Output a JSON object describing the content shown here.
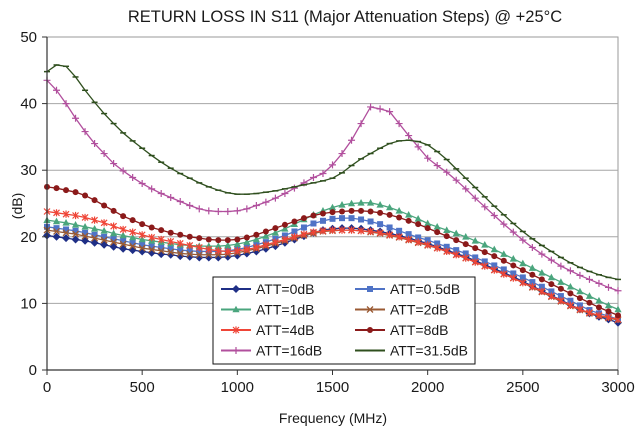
{
  "chart_data": {
    "type": "line",
    "title": "RETURN LOSS IN S11 (Major Attenuation Steps) @ +25°C",
    "xlabel": "Frequency (MHz)",
    "ylabel": "(dB)",
    "xlim": [
      0,
      3000
    ],
    "ylim": [
      0,
      50
    ],
    "xticks": [
      0,
      500,
      1000,
      1500,
      2000,
      2500,
      3000
    ],
    "yticks": [
      0,
      10,
      20,
      30,
      40,
      50
    ],
    "grid": "horizontal",
    "legend": "bottom-center, inside, two columns",
    "x": [
      0,
      50,
      100,
      150,
      200,
      250,
      300,
      350,
      400,
      450,
      500,
      550,
      600,
      650,
      700,
      750,
      800,
      850,
      900,
      950,
      1000,
      1050,
      1100,
      1150,
      1200,
      1250,
      1300,
      1350,
      1400,
      1450,
      1500,
      1550,
      1600,
      1650,
      1700,
      1750,
      1800,
      1850,
      1900,
      1950,
      2000,
      2050,
      2100,
      2150,
      2200,
      2250,
      2300,
      2350,
      2400,
      2450,
      2500,
      2550,
      2600,
      2650,
      2700,
      2750,
      2800,
      2850,
      2900,
      2950,
      3000
    ],
    "series": [
      {
        "name": "ATT=0dB",
        "color": "#1f2f86",
        "marker": "diamond",
        "values": [
          20.2,
          20.0,
          19.8,
          19.6,
          19.4,
          19.1,
          18.8,
          18.5,
          18.2,
          18.0,
          17.8,
          17.6,
          17.4,
          17.3,
          17.1,
          17.0,
          16.9,
          16.9,
          16.9,
          17.0,
          17.2,
          17.5,
          17.8,
          18.2,
          18.6,
          19.1,
          19.6,
          20.1,
          20.6,
          21.0,
          21.2,
          21.3,
          21.3,
          21.2,
          21.0,
          20.8,
          20.5,
          20.2,
          19.8,
          19.4,
          19.0,
          18.5,
          18.0,
          17.5,
          17.0,
          16.4,
          15.8,
          15.2,
          14.6,
          14.0,
          13.3,
          12.6,
          11.9,
          11.2,
          10.5,
          9.8,
          9.1,
          8.5,
          8.0,
          7.6,
          7.1
        ]
      },
      {
        "name": "ATT=0.5dB",
        "color": "#4f73c6",
        "marker": "square",
        "values": [
          21.5,
          21.3,
          21.1,
          20.9,
          20.6,
          20.3,
          20.0,
          19.7,
          19.4,
          19.1,
          18.8,
          18.6,
          18.4,
          18.2,
          18.0,
          17.9,
          17.8,
          17.8,
          17.8,
          17.9,
          18.1,
          18.4,
          18.8,
          19.2,
          19.7,
          20.2,
          20.8,
          21.4,
          22.0,
          22.4,
          22.7,
          22.8,
          22.8,
          22.6,
          22.3,
          21.9,
          21.4,
          20.9,
          20.4,
          19.9,
          19.5,
          19.0,
          18.5,
          18.0,
          17.5,
          16.9,
          16.3,
          15.7,
          15.1,
          14.5,
          13.9,
          13.2,
          12.5,
          11.8,
          11.1,
          10.4,
          9.7,
          9.0,
          8.5,
          8.1,
          7.6
        ]
      },
      {
        "name": "ATT=1dB",
        "color": "#4aa57d",
        "marker": "triangle",
        "values": [
          22.5,
          22.3,
          22.1,
          21.8,
          21.5,
          21.2,
          20.9,
          20.5,
          20.2,
          19.9,
          19.6,
          19.4,
          19.2,
          19.0,
          18.8,
          18.7,
          18.6,
          18.6,
          18.6,
          18.7,
          18.9,
          19.2,
          19.6,
          20.1,
          20.6,
          21.2,
          21.9,
          22.6,
          23.3,
          23.9,
          24.4,
          24.8,
          25.0,
          25.1,
          25.1,
          24.8,
          24.4,
          23.9,
          23.3,
          22.7,
          22.0,
          21.5,
          21.0,
          20.5,
          20.0,
          19.4,
          18.8,
          18.1,
          17.4,
          16.7,
          16.0,
          15.3,
          14.6,
          13.9,
          13.2,
          12.5,
          11.8,
          11.1,
          10.4,
          9.7,
          9.1
        ]
      },
      {
        "name": "ATT=2dB",
        "color": "#9a5a33",
        "marker": "x",
        "values": [
          21.0,
          20.8,
          20.6,
          20.4,
          20.1,
          19.8,
          19.5,
          19.2,
          18.9,
          18.6,
          18.3,
          18.1,
          17.9,
          17.7,
          17.5,
          17.4,
          17.3,
          17.3,
          17.3,
          17.4,
          17.6,
          17.9,
          18.2,
          18.6,
          19.0,
          19.4,
          19.8,
          20.2,
          20.5,
          20.8,
          20.9,
          21.0,
          21.0,
          20.9,
          20.7,
          20.5,
          20.2,
          19.9,
          19.5,
          19.1,
          18.7,
          18.3,
          17.8,
          17.3,
          16.8,
          16.2,
          15.6,
          15.0,
          14.4,
          13.8,
          13.1,
          12.4,
          11.7,
          11.0,
          10.3,
          9.6,
          9.0,
          8.5,
          8.1,
          7.8,
          7.5
        ]
      },
      {
        "name": "ATT=4dB",
        "color": "#ef4537",
        "marker": "star",
        "values": [
          23.8,
          23.6,
          23.4,
          23.2,
          22.9,
          22.5,
          22.1,
          21.6,
          21.1,
          20.7,
          20.3,
          19.9,
          19.6,
          19.3,
          19.0,
          18.7,
          18.4,
          18.1,
          17.9,
          17.8,
          17.9,
          18.1,
          18.4,
          18.8,
          19.2,
          19.6,
          20.0,
          20.4,
          20.7,
          20.9,
          21.0,
          21.0,
          21.0,
          20.9,
          20.8,
          20.6,
          20.3,
          20.0,
          19.6,
          19.2,
          18.8,
          18.3,
          17.8,
          17.3,
          16.8,
          16.2,
          15.6,
          15.0,
          14.4,
          13.8,
          13.1,
          12.5,
          11.8,
          11.1,
          10.4,
          9.7,
          9.1,
          8.6,
          8.2,
          7.9,
          7.6
        ]
      },
      {
        "name": "ATT=8dB",
        "color": "#8b1a1a",
        "marker": "circle",
        "values": [
          27.5,
          27.3,
          27.0,
          26.7,
          26.2,
          25.5,
          24.7,
          23.9,
          23.1,
          22.5,
          21.9,
          21.4,
          21.0,
          20.6,
          20.3,
          20.0,
          19.8,
          19.6,
          19.5,
          19.5,
          19.6,
          19.9,
          20.3,
          20.8,
          21.3,
          21.8,
          22.3,
          22.8,
          23.2,
          23.5,
          23.7,
          23.8,
          23.9,
          23.9,
          23.8,
          23.6,
          23.3,
          22.9,
          22.4,
          21.9,
          21.3,
          20.7,
          20.1,
          19.5,
          18.9,
          18.3,
          17.7,
          17.1,
          16.4,
          15.7,
          15.0,
          14.3,
          13.6,
          12.9,
          12.2,
          11.5,
          10.8,
          10.1,
          9.4,
          8.8,
          8.2
        ]
      },
      {
        "name": "ATT=16dB",
        "color": "#b14f9d",
        "marker": "plus",
        "values": [
          43.5,
          42.0,
          40.0,
          37.8,
          35.8,
          34.0,
          32.5,
          31.0,
          29.9,
          28.9,
          28.0,
          27.2,
          26.5,
          25.9,
          25.3,
          24.7,
          24.2,
          23.9,
          23.8,
          23.8,
          23.9,
          24.2,
          24.7,
          25.2,
          25.8,
          26.5,
          27.3,
          28.1,
          28.9,
          29.5,
          30.8,
          32.5,
          34.5,
          37.0,
          39.5,
          39.2,
          38.8,
          37.0,
          35.2,
          33.5,
          31.8,
          30.7,
          29.7,
          28.5,
          27.2,
          25.8,
          24.5,
          23.2,
          21.9,
          20.7,
          19.5,
          18.4,
          17.4,
          16.5,
          15.6,
          14.9,
          14.2,
          13.6,
          13.0,
          12.4,
          11.9
        ]
      },
      {
        "name": "ATT=31.5dB",
        "color": "#2f4f1e",
        "marker": "dash",
        "values": [
          44.8,
          45.8,
          45.6,
          44.0,
          42.0,
          40.2,
          38.5,
          37.0,
          35.6,
          34.4,
          33.3,
          32.2,
          31.2,
          30.3,
          29.5,
          28.8,
          28.1,
          27.5,
          27.0,
          26.6,
          26.4,
          26.4,
          26.5,
          26.7,
          26.9,
          27.2,
          27.5,
          27.8,
          28.1,
          28.4,
          28.8,
          29.6,
          30.7,
          31.7,
          32.5,
          33.3,
          34.0,
          34.4,
          34.5,
          34.3,
          33.8,
          32.8,
          31.6,
          30.2,
          28.8,
          27.4,
          26.0,
          24.6,
          23.3,
          22.0,
          20.8,
          19.7,
          18.7,
          17.8,
          16.9,
          16.1,
          15.4,
          14.8,
          14.3,
          13.9,
          13.6
        ]
      }
    ]
  }
}
